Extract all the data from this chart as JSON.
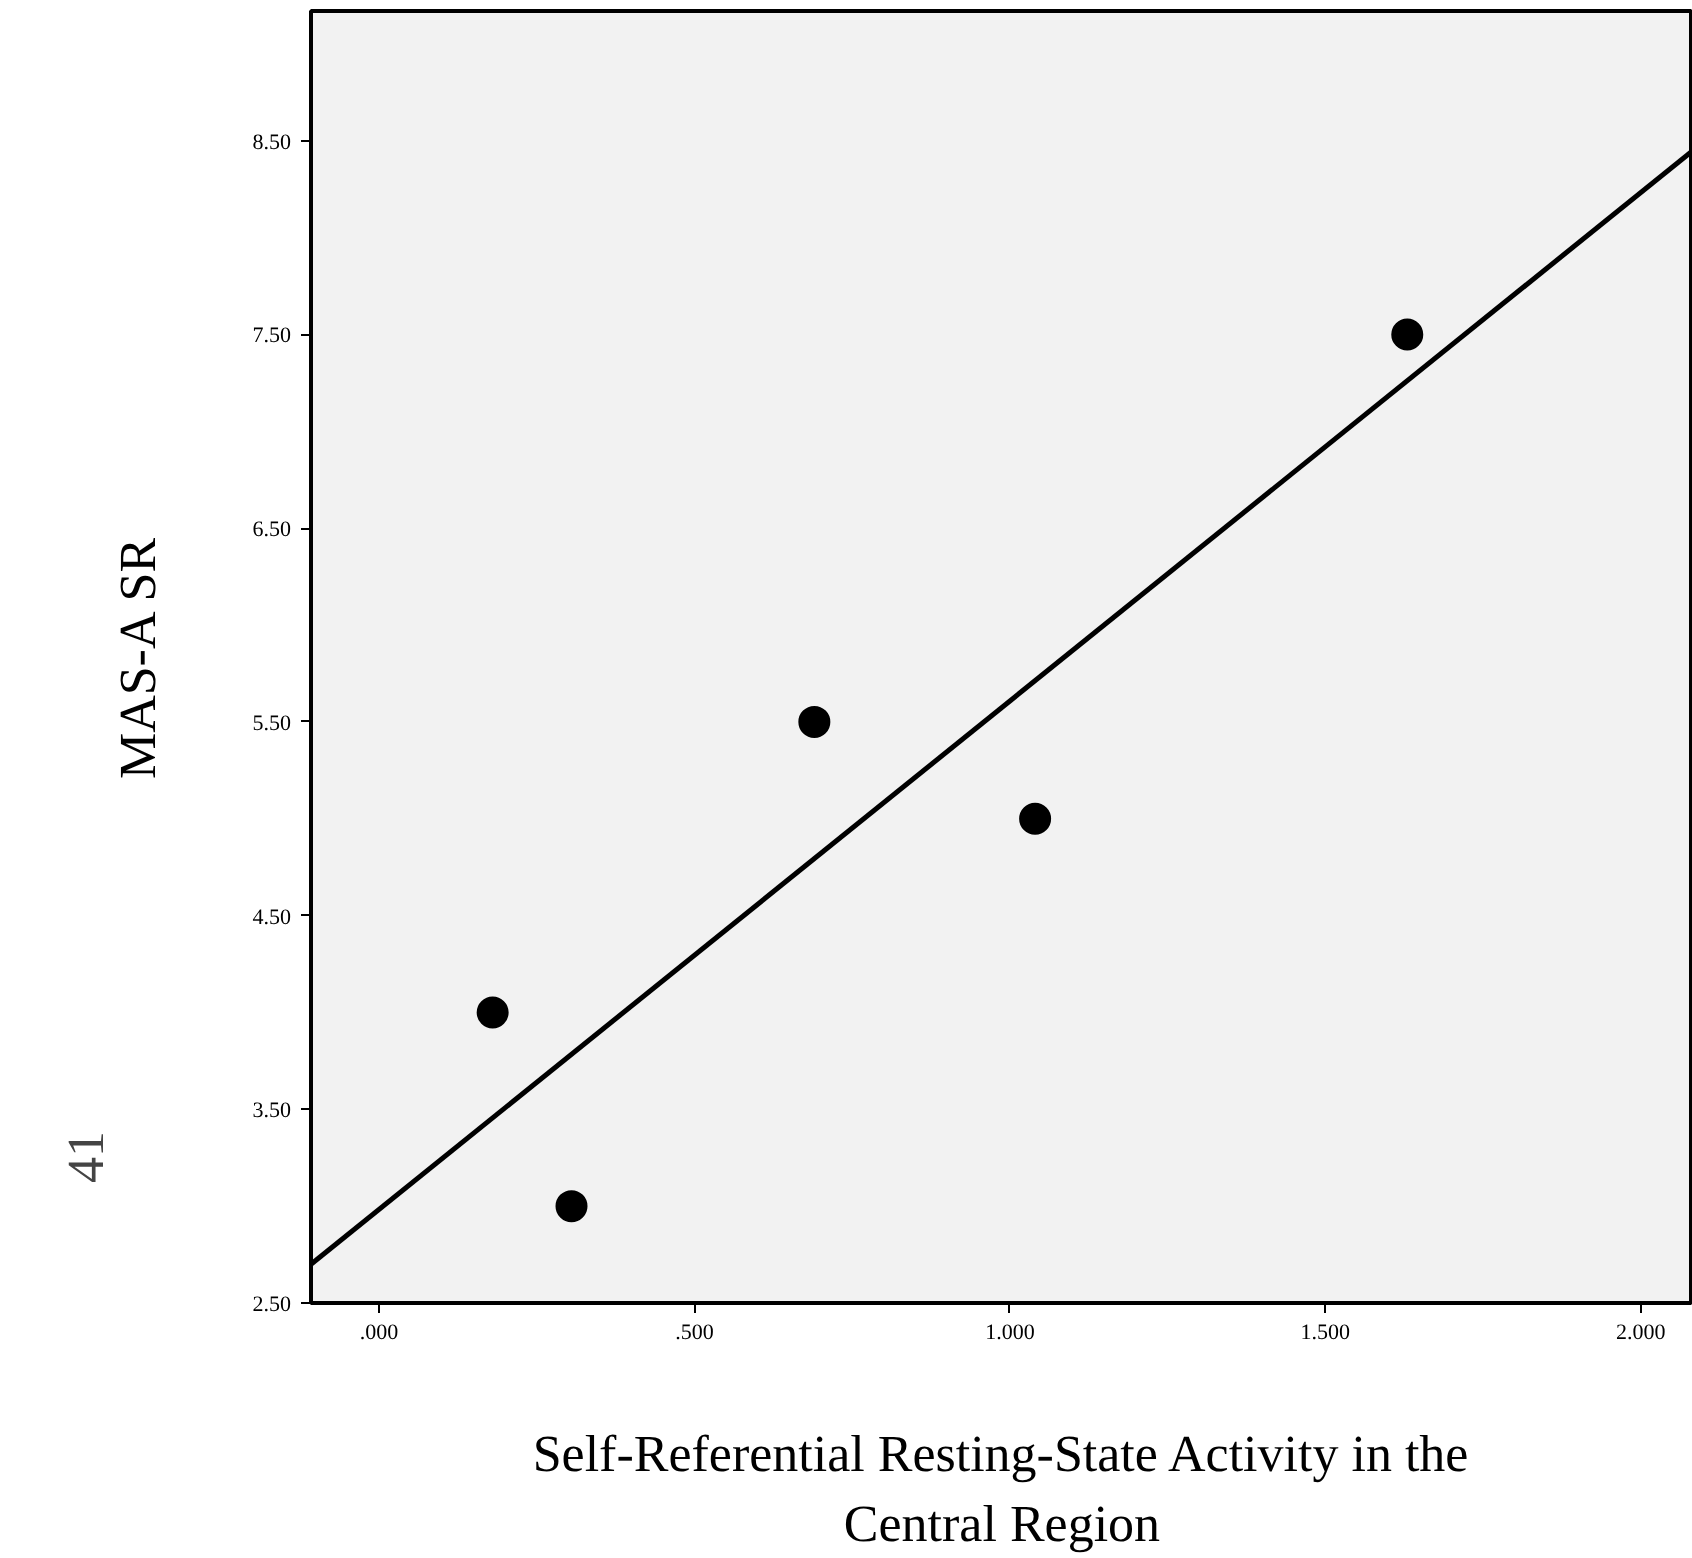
{
  "chart_data": {
    "type": "scatter",
    "xlabel": "Self-Referential Resting-State Activity in the\nCentral Region",
    "ylabel": "MAS-A SR",
    "marker": "circle",
    "series": [
      {
        "color": "#000000",
        "x": [
          0.18,
          0.305,
          0.69,
          1.04,
          1.63
        ],
        "values": [
          4.0,
          3.0,
          5.5,
          5.0,
          7.5
        ]
      },
      {
        "type": "line",
        "color": "#000000",
        "marker": "none",
        "x": [
          -0.108,
          2.083
        ],
        "values": [
          2.7,
          8.45
        ]
      }
    ],
    "xlim": [
      -0.108,
      2.083
    ],
    "ylim": [
      2.5,
      9.17
    ],
    "xticks": [
      {
        "value": 0,
        "label": ".000"
      },
      {
        "value": 0.5,
        "label": ".500"
      },
      {
        "value": 1,
        "label": "1.000"
      },
      {
        "value": 1.5,
        "label": "1.500"
      },
      {
        "value": 2,
        "label": "2.000"
      }
    ],
    "yticks": [
      {
        "value": 2.5,
        "label": "2.50"
      },
      {
        "value": 3.5,
        "label": "3.50"
      },
      {
        "value": 4.5,
        "label": "4.50"
      },
      {
        "value": 5.5,
        "label": "5.50"
      },
      {
        "value": 6.5,
        "label": "6.50"
      },
      {
        "value": 7.5,
        "label": "7.50"
      },
      {
        "value": 8.5,
        "label": "8.50"
      }
    ],
    "grid": false,
    "annotations": [
      "41"
    ]
  }
}
